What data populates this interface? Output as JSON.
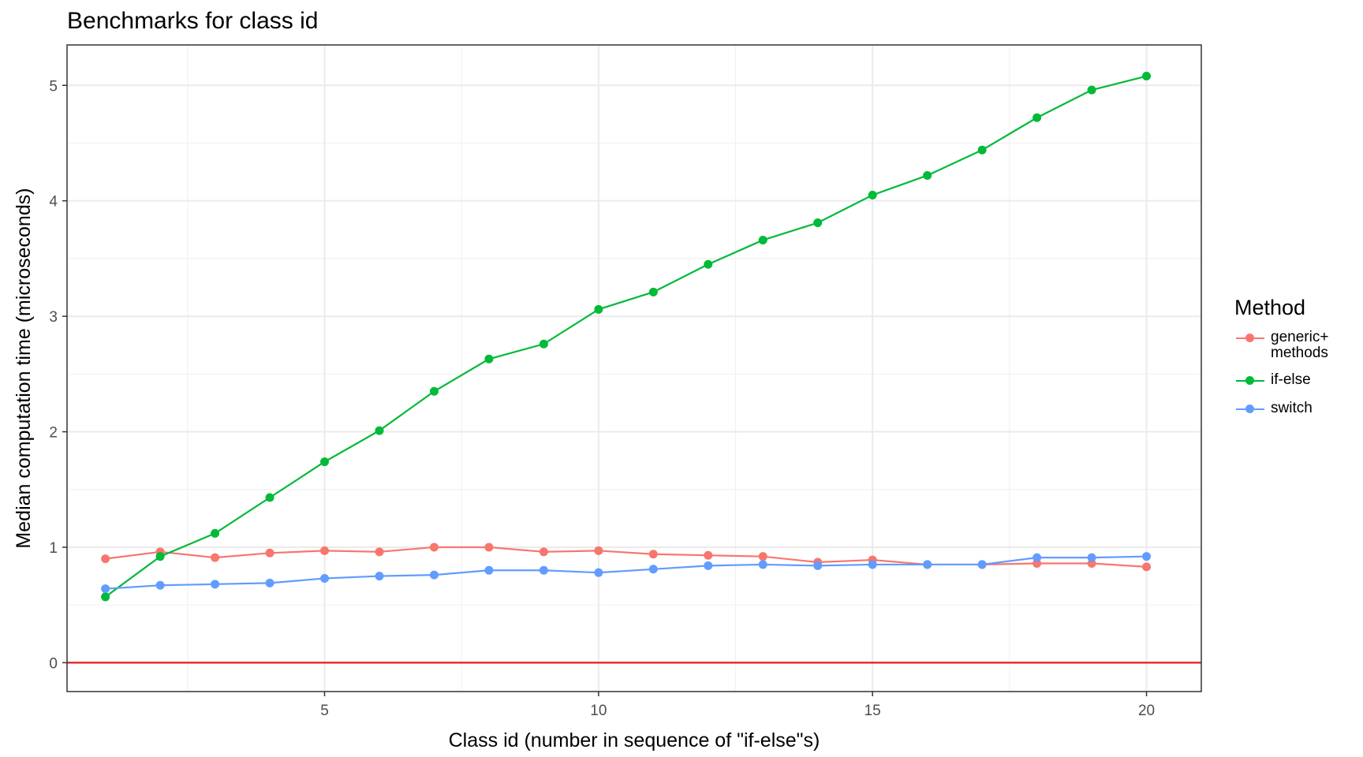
{
  "chart_data": {
    "type": "line",
    "title": "Benchmarks for class id",
    "xlabel": "Class id (number in sequence of \"if-else\"s)",
    "ylabel": "Median computation time (microseconds)",
    "xlim": [
      0.3,
      21
    ],
    "ylim": [
      -0.25,
      5.35
    ],
    "xticks": [
      5,
      10,
      15,
      20
    ],
    "yticks": [
      0,
      1,
      2,
      3,
      4,
      5
    ],
    "grid": true,
    "reference_line": {
      "y": 0,
      "color": "#e41a1c"
    },
    "legend": {
      "title": "Method",
      "placement": "right"
    },
    "x": [
      1,
      2,
      3,
      4,
      5,
      6,
      7,
      8,
      9,
      10,
      11,
      12,
      13,
      14,
      15,
      16,
      17,
      18,
      19,
      20
    ],
    "series": [
      {
        "name": "generic+\nmethods",
        "color": "#f8766d",
        "values": [
          0.9,
          0.96,
          0.91,
          0.95,
          0.97,
          0.96,
          1.0,
          1.0,
          0.96,
          0.97,
          0.94,
          0.93,
          0.92,
          0.87,
          0.89,
          0.85,
          0.85,
          0.86,
          0.86,
          0.83
        ]
      },
      {
        "name": "if-else",
        "color": "#00ba38",
        "values": [
          0.57,
          0.92,
          1.12,
          1.43,
          1.74,
          2.01,
          2.35,
          2.63,
          2.76,
          3.06,
          3.21,
          3.45,
          3.66,
          3.81,
          4.05,
          4.22,
          4.44,
          4.72,
          4.96,
          5.08
        ]
      },
      {
        "name": "switch",
        "color": "#619cff",
        "values": [
          0.64,
          0.67,
          0.68,
          0.69,
          0.73,
          0.75,
          0.76,
          0.8,
          0.8,
          0.78,
          0.81,
          0.84,
          0.85,
          0.84,
          0.85,
          0.85,
          0.85,
          0.91,
          0.91,
          0.92
        ]
      }
    ]
  }
}
